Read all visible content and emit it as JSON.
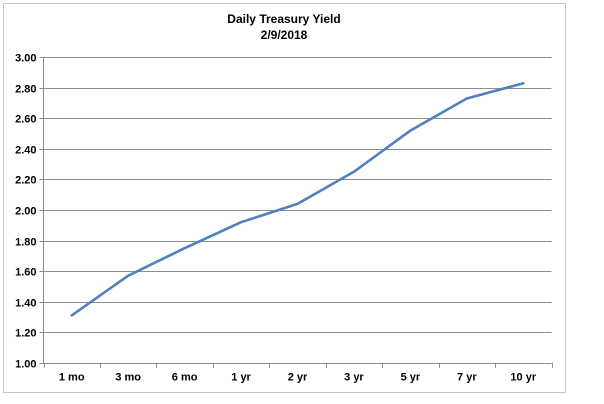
{
  "chart_data": {
    "type": "line",
    "title": "Daily Treasury Yield",
    "subtitle": "2/9/2018",
    "categories": [
      "1 mo",
      "3 mo",
      "6 mo",
      "1 yr",
      "2 yr",
      "3 yr",
      "5 yr",
      "7 yr",
      "10 yr"
    ],
    "series": [
      {
        "name": "Daily Treasury Yield 2/9/2018",
        "values": [
          1.31,
          1.57,
          1.75,
          1.92,
          2.04,
          2.25,
          2.52,
          2.73,
          2.83
        ]
      }
    ],
    "xlabel": "",
    "ylabel": "",
    "ylim": [
      1.0,
      3.0
    ],
    "ytick_step": 0.2,
    "ytick_labels": [
      "1.00",
      "1.20",
      "1.40",
      "1.60",
      "1.80",
      "2.00",
      "2.20",
      "2.40",
      "2.60",
      "2.80",
      "3.00"
    ],
    "grid": "horizontal",
    "legend": "none",
    "colors": {
      "line": "#4F81BD",
      "gridline": "#8C8C8C",
      "axis": "#8C8C8C",
      "text": "#000000",
      "chart_border": "#C6C6C6",
      "background": "#FFFFFF"
    }
  }
}
